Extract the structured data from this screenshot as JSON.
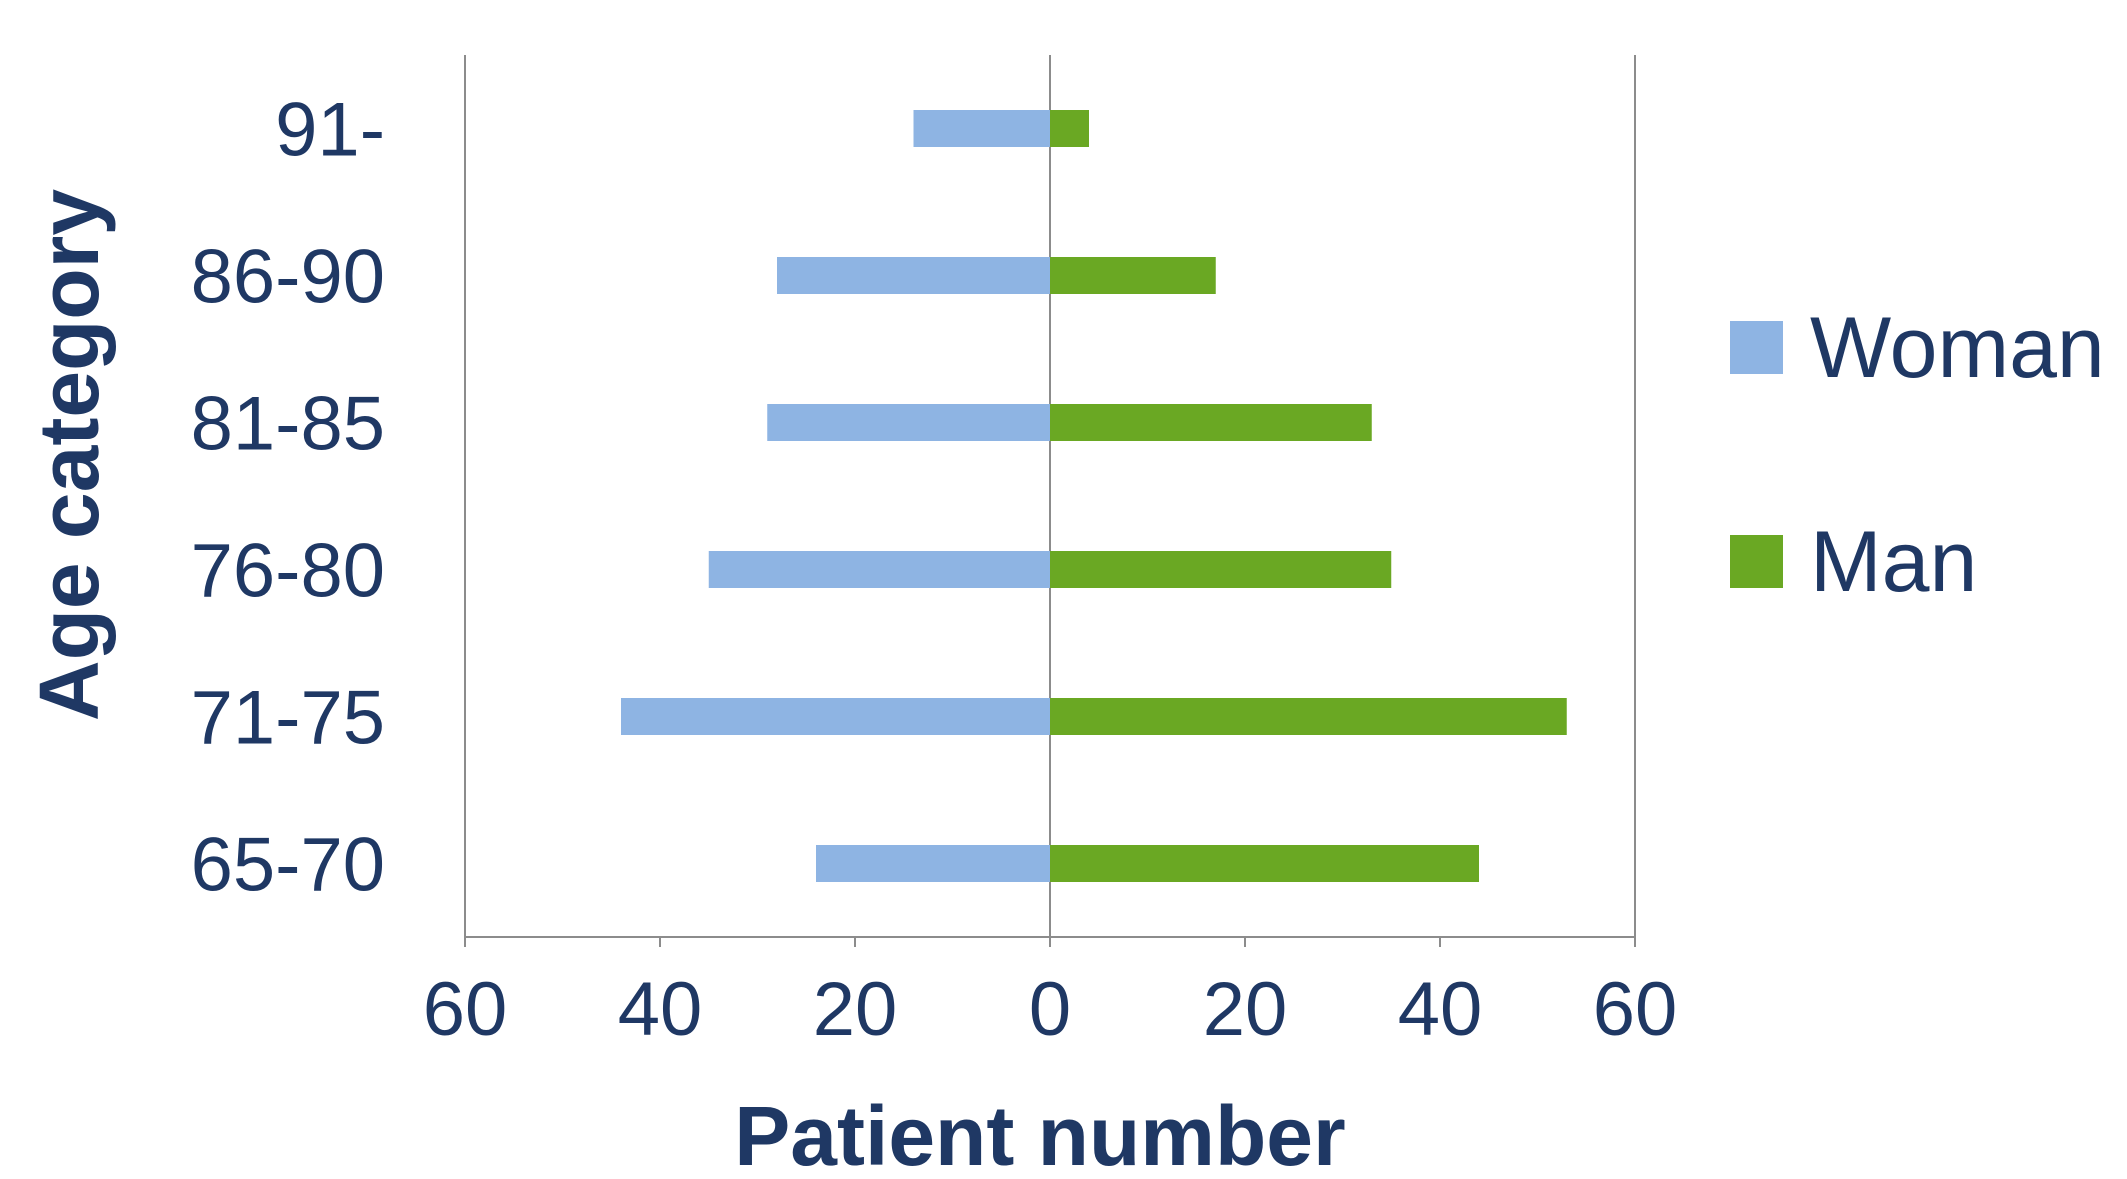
{
  "chart_data": {
    "type": "bar",
    "orientation": "horizontal",
    "layout": "population-pyramid",
    "categories": [
      "65-70",
      "71-75",
      "76-80",
      "81-85",
      "86-90",
      "91-"
    ],
    "series": [
      {
        "name": "Woman",
        "color": "#8eb4e3",
        "side": "left",
        "values": [
          24,
          44,
          35,
          29,
          28,
          14
        ]
      },
      {
        "name": "Man",
        "color": "#6aa823",
        "side": "right",
        "values": [
          44,
          53,
          35,
          33,
          17,
          4
        ]
      }
    ],
    "xaxis": {
      "title": "Patient number",
      "ticks": [
        {
          "value": -60,
          "label": "60"
        },
        {
          "value": -40,
          "label": "40"
        },
        {
          "value": -20,
          "label": "20"
        },
        {
          "value": 0,
          "label": "0"
        },
        {
          "value": 20,
          "label": "20"
        },
        {
          "value": 40,
          "label": "40"
        },
        {
          "value": 60,
          "label": "60"
        }
      ],
      "range": [
        -60,
        60
      ]
    },
    "yaxis": {
      "title": "Age category"
    },
    "legend": {
      "position": "right"
    },
    "grid": false,
    "colors": {
      "text": "#1f3864",
      "axis": "#8c8c8c"
    }
  }
}
